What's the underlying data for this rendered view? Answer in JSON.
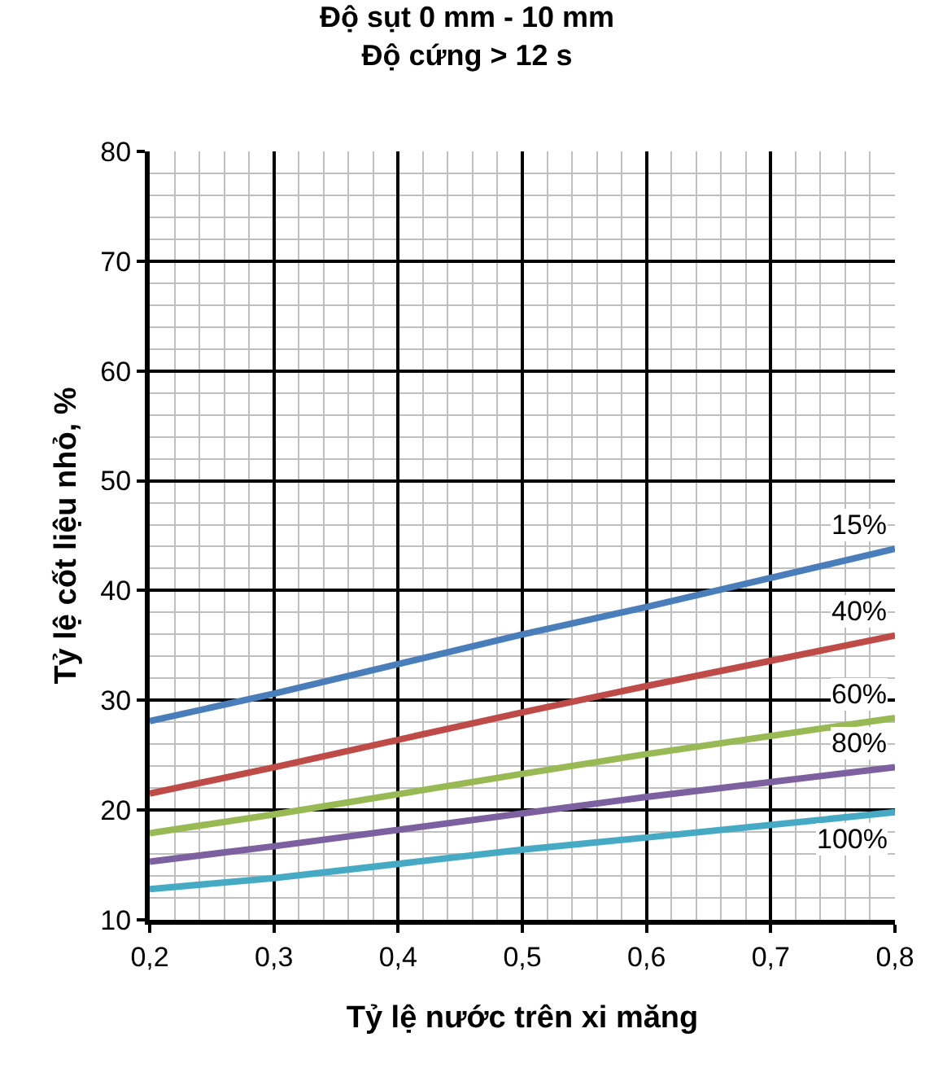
{
  "chart_data": {
    "type": "line",
    "title": "Độ sụt 0 mm - 10 mm",
    "subtitle": "Độ cứng > 12 s",
    "xlabel": "Tỷ lệ nước trên xi măng",
    "ylabel": "Tỷ lệ cốt liệu nhỏ, %",
    "x": [
      0.2,
      0.3,
      0.5,
      0.6,
      0.8
    ],
    "series": [
      {
        "name": "15%",
        "color": "#4a7ebb",
        "values": [
          28.1,
          30.6,
          36.0,
          38.5,
          43.8
        ]
      },
      {
        "name": "40%",
        "color": "#be4b48",
        "values": [
          21.5,
          23.9,
          28.9,
          31.3,
          35.9
        ]
      },
      {
        "name": "60%",
        "color": "#98b954",
        "values": [
          17.9,
          19.6,
          23.3,
          25.1,
          28.4
        ]
      },
      {
        "name": "80%",
        "color": "#7d60a0",
        "values": [
          15.3,
          16.7,
          19.7,
          21.2,
          23.9
        ]
      },
      {
        "name": "100%",
        "color": "#46aac5",
        "values": [
          12.8,
          13.8,
          16.4,
          17.5,
          19.8
        ]
      }
    ],
    "xlim": [
      0.2,
      0.8
    ],
    "xticks": [
      {
        "value": 0.2,
        "label": "0,2"
      },
      {
        "value": 0.3,
        "label": "0,3"
      },
      {
        "value": 0.4,
        "label": "0,4"
      },
      {
        "value": 0.5,
        "label": "0,5"
      },
      {
        "value": 0.6,
        "label": "0,6"
      },
      {
        "value": 0.7,
        "label": "0,7"
      },
      {
        "value": 0.8,
        "label": "0,8"
      }
    ],
    "ylim": [
      10,
      80
    ],
    "yticks": [
      10,
      20,
      30,
      40,
      50,
      60,
      70,
      80
    ],
    "grid": true,
    "legend": false,
    "marker": "none",
    "line_style": "solid"
  }
}
